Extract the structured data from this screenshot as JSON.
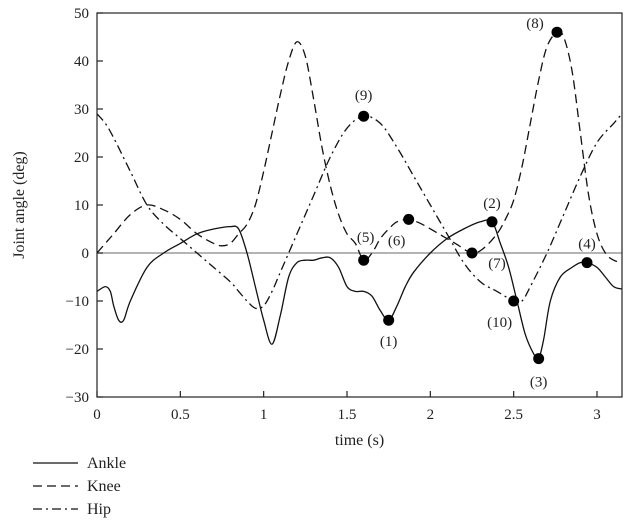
{
  "chart_data": {
    "type": "line",
    "xlabel": "time (s)",
    "ylabel": "Joint angle (deg)",
    "xlim": [
      0,
      3.15
    ],
    "ylim": [
      -30,
      50
    ],
    "xticks": [
      0,
      0.5,
      1,
      1.5,
      2,
      2.5,
      3
    ],
    "yticks": [
      -30,
      -20,
      -10,
      0,
      10,
      20,
      30,
      40,
      50
    ],
    "xtick_labels": [
      "0",
      "0.5",
      "1",
      "1.5",
      "2",
      "2.5",
      "3"
    ],
    "ytick_labels": [
      "−30",
      "−20",
      "−10",
      "0",
      "10",
      "20",
      "30",
      "40",
      "50"
    ],
    "zero_line": true,
    "legend_position": "bottom-left",
    "series": [
      {
        "name": "Ankle",
        "style": "solid",
        "x": [
          0,
          0.05,
          0.08,
          0.1,
          0.13,
          0.16,
          0.2,
          0.3,
          0.4,
          0.5,
          0.6,
          0.7,
          0.8,
          0.85,
          0.9,
          0.95,
          1.0,
          1.05,
          1.1,
          1.15,
          1.2,
          1.25,
          1.3,
          1.35,
          1.4,
          1.45,
          1.5,
          1.55,
          1.6,
          1.65,
          1.7,
          1.75,
          1.8,
          1.85,
          1.9,
          2.0,
          2.1,
          2.2,
          2.3,
          2.37,
          2.42,
          2.47,
          2.52,
          2.57,
          2.62,
          2.65,
          2.68,
          2.72,
          2.78,
          2.85,
          2.9,
          2.94,
          3.0,
          3.05,
          3.1,
          3.15
        ],
        "y": [
          -8,
          -7,
          -8,
          -11,
          -14,
          -14,
          -10,
          -3,
          0,
          2,
          4,
          5,
          5.5,
          5,
          0,
          -7,
          -14,
          -19,
          -13,
          -5,
          -2,
          -1.5,
          -1.5,
          -1,
          -1,
          -3,
          -7,
          -8,
          -8,
          -9,
          -12,
          -14,
          -11,
          -7,
          -4,
          0,
          3,
          5,
          6.5,
          6.5,
          2,
          -3,
          -10,
          -17,
          -21,
          -22,
          -18,
          -10,
          -5,
          -3,
          -2,
          -2,
          -3,
          -5,
          -7,
          -7.5
        ]
      },
      {
        "name": "Knee",
        "style": "dashed",
        "x": [
          0,
          0.05,
          0.1,
          0.2,
          0.3,
          0.4,
          0.5,
          0.6,
          0.7,
          0.75,
          0.8,
          0.85,
          0.9,
          0.95,
          1.0,
          1.05,
          1.1,
          1.15,
          1.2,
          1.25,
          1.3,
          1.35,
          1.4,
          1.45,
          1.5,
          1.55,
          1.6,
          1.65,
          1.7,
          1.75,
          1.8,
          1.87,
          1.95,
          2.05,
          2.15,
          2.25,
          2.32,
          2.4,
          2.45,
          2.5,
          2.55,
          2.6,
          2.65,
          2.7,
          2.76,
          2.8,
          2.85,
          2.9,
          2.95,
          3.0,
          3.05,
          3.1,
          3.15
        ],
        "y": [
          0,
          2,
          4,
          8,
          10,
          9,
          7,
          4,
          2,
          1.5,
          2,
          4,
          6,
          10,
          17,
          25,
          33,
          40,
          44,
          41,
          32,
          22,
          14,
          8,
          4,
          2,
          -1.5,
          0,
          3,
          5,
          6.5,
          7,
          6,
          4,
          2,
          0,
          1,
          4,
          7,
          11,
          18,
          27,
          36,
          43,
          46,
          45,
          38,
          25,
          12,
          4,
          0,
          -1.5,
          -2
        ]
      },
      {
        "name": "Hip",
        "style": "dashdot",
        "x": [
          0,
          0.05,
          0.1,
          0.2,
          0.3,
          0.4,
          0.5,
          0.6,
          0.7,
          0.8,
          0.85,
          0.9,
          0.95,
          1.0,
          1.05,
          1.1,
          1.2,
          1.3,
          1.4,
          1.5,
          1.6,
          1.7,
          1.8,
          1.9,
          2.0,
          2.1,
          2.2,
          2.3,
          2.4,
          2.5,
          2.55,
          2.6,
          2.7,
          2.8,
          2.9,
          3.0,
          3.1,
          3.15
        ],
        "y": [
          29,
          27,
          24,
          17,
          10,
          6,
          3,
          0,
          -3,
          -6,
          -8,
          -10,
          -11.5,
          -11,
          -8,
          -4,
          4,
          12,
          20,
          26,
          28.5,
          27,
          22,
          16,
          10,
          4,
          -2,
          -6,
          -8,
          -10,
          -10,
          -7,
          0,
          8,
          16,
          23,
          27,
          29
        ]
      }
    ],
    "markers": [
      {
        "label": "(1)",
        "x": 1.75,
        "y": -14
      },
      {
        "label": "(2)",
        "x": 2.37,
        "y": 6.5
      },
      {
        "label": "(3)",
        "x": 2.65,
        "y": -22
      },
      {
        "label": "(4)",
        "x": 2.94,
        "y": -2
      },
      {
        "label": "(5)",
        "x": 1.6,
        "y": -1.5
      },
      {
        "label": "(6)",
        "x": 1.87,
        "y": 7
      },
      {
        "label": "(7)",
        "x": 2.25,
        "y": 0
      },
      {
        "label": "(8)",
        "x": 2.76,
        "y": 46
      },
      {
        "label": "(9)",
        "x": 1.6,
        "y": 28.5
      },
      {
        "label": "(10)",
        "x": 2.5,
        "y": -10
      }
    ]
  }
}
